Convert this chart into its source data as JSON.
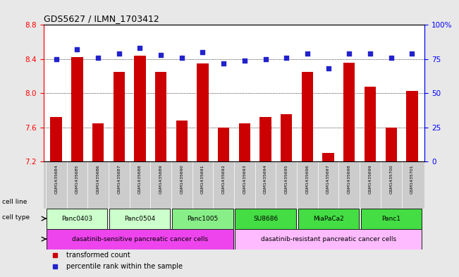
{
  "title": "GDS5627 / ILMN_1703412",
  "samples": [
    "GSM1435684",
    "GSM1435685",
    "GSM1435686",
    "GSM1435687",
    "GSM1435688",
    "GSM1435689",
    "GSM1435690",
    "GSM1435691",
    "GSM1435692",
    "GSM1435693",
    "GSM1435694",
    "GSM1435695",
    "GSM1435696",
    "GSM1435697",
    "GSM1435698",
    "GSM1435699",
    "GSM1435700",
    "GSM1435701"
  ],
  "bar_values": [
    7.72,
    8.42,
    7.65,
    8.25,
    8.44,
    8.25,
    7.68,
    8.35,
    7.6,
    7.65,
    7.72,
    7.75,
    8.25,
    7.3,
    8.36,
    8.08,
    7.6,
    8.03
  ],
  "percentile_values": [
    75,
    82,
    76,
    79,
    83,
    78,
    76,
    80,
    72,
    74,
    75,
    76,
    79,
    68,
    79,
    79,
    76,
    79
  ],
  "y_min": 7.2,
  "y_max": 8.8,
  "y_ticks_left": [
    7.2,
    7.6,
    8.0,
    8.4,
    8.8
  ],
  "y_ticks_right_vals": [
    0,
    25,
    50,
    75,
    100
  ],
  "y_ticks_right_labels": [
    "0",
    "25",
    "50",
    "75",
    "100%"
  ],
  "bar_color": "#cc0000",
  "dot_color": "#2222cc",
  "cell_lines": [
    {
      "label": "Panc0403",
      "start": 0,
      "end": 2,
      "color": "#ccffcc"
    },
    {
      "label": "Panc0504",
      "start": 3,
      "end": 5,
      "color": "#ccffcc"
    },
    {
      "label": "Panc1005",
      "start": 6,
      "end": 8,
      "color": "#88ee88"
    },
    {
      "label": "SU8686",
      "start": 9,
      "end": 11,
      "color": "#44dd44"
    },
    {
      "label": "MiaPaCa2",
      "start": 12,
      "end": 14,
      "color": "#44dd44"
    },
    {
      "label": "Panc1",
      "start": 15,
      "end": 17,
      "color": "#44dd44"
    }
  ],
  "cell_types": [
    {
      "label": "dasatinib-sensitive pancreatic cancer cells",
      "start": 0,
      "end": 8,
      "color": "#ee44ee"
    },
    {
      "label": "dasatinib-resistant pancreatic cancer cells",
      "start": 9,
      "end": 17,
      "color": "#ffbbff"
    }
  ],
  "legend_bar_label": "transformed count",
  "legend_dot_label": "percentile rank within the sample",
  "label_cell_line": "cell line",
  "label_cell_type": "cell type",
  "bg_color": "#e8e8e8",
  "plot_bg_color": "#ffffff",
  "xtick_bg": "#cccccc"
}
